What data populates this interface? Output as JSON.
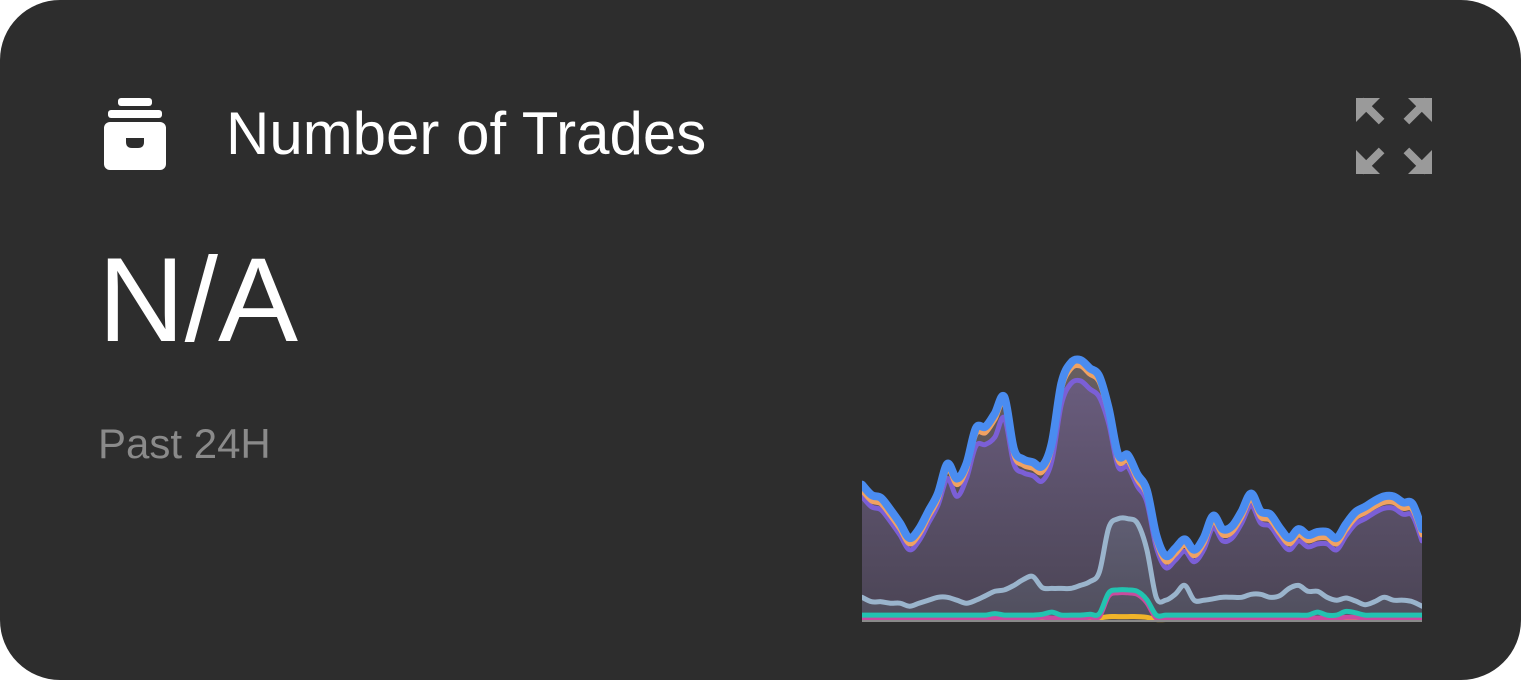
{
  "card": {
    "icon": "archive-box-icon",
    "title": "Number of Trades",
    "value": "N/A",
    "period": "Past 24H",
    "expand_icon": "expand-arrows-icon"
  },
  "colors": {
    "card_background": "#2d2d2d",
    "title_text": "#ffffff",
    "value_text": "#ffffff",
    "period_text": "#8a8a8a",
    "icon": "#ffffff",
    "expand_icon": "#9a9a9a"
  },
  "chart_data": {
    "type": "area",
    "stacked": true,
    "axes_visible": false,
    "grid": false,
    "legend": "none",
    "points_per_series": 60,
    "series": [
      {
        "color": "#f0b429",
        "values": [
          1,
          1,
          1,
          1,
          1,
          1,
          1,
          1,
          1,
          1,
          1,
          1,
          1,
          1,
          1,
          1,
          1,
          1,
          1,
          1.5,
          1,
          1,
          1,
          1,
          1.5,
          2,
          3,
          3,
          3,
          3,
          2.5,
          1,
          1,
          1,
          1,
          1,
          1,
          1,
          1,
          1,
          1,
          1,
          1,
          1,
          1,
          1,
          1,
          1,
          1,
          1,
          1,
          1.5,
          1.5,
          1,
          1,
          1,
          1,
          1,
          1,
          1
        ]
      },
      {
        "color": "#c84b9e",
        "values": [
          1,
          1,
          1,
          1,
          1,
          1,
          1,
          1,
          1,
          1,
          1,
          1,
          1,
          1,
          1,
          1,
          1,
          1,
          1,
          1,
          1,
          1,
          1,
          1,
          1,
          1,
          14,
          16,
          16,
          15,
          10,
          1,
          1,
          1,
          1,
          1,
          1,
          1,
          1,
          1,
          1,
          1,
          1,
          1,
          1,
          1,
          1,
          1,
          1,
          1,
          1,
          1,
          1,
          1,
          1,
          1,
          1,
          1,
          1,
          1
        ]
      },
      {
        "color": "#22c3b0",
        "values": [
          2,
          2,
          2,
          2,
          2,
          2,
          2,
          2,
          2,
          2,
          2,
          2,
          2,
          2,
          3,
          2,
          2,
          2,
          2,
          2,
          4,
          2,
          2,
          2,
          2,
          2,
          2,
          2,
          2,
          2,
          2,
          2,
          2,
          2,
          2,
          2,
          2,
          2,
          2,
          2,
          2,
          2,
          2,
          2,
          2,
          2,
          2,
          2,
          4,
          2,
          2,
          4,
          3,
          2,
          2,
          2,
          2,
          2,
          2,
          2
        ]
      },
      {
        "color": "#9ab4cc",
        "values": [
          12,
          9,
          9,
          8,
          8,
          6,
          8,
          10,
          12,
          12,
          10,
          8,
          10,
          13,
          15,
          17,
          20,
          24,
          26,
          18,
          16,
          18,
          18,
          20,
          22,
          28,
          44,
          48,
          48,
          46,
          34,
          12,
          10,
          14,
          20,
          10,
          10,
          11,
          12,
          12,
          12,
          14,
          14,
          12,
          13,
          18,
          20,
          16,
          14,
          12,
          10,
          9,
          8,
          7,
          9,
          12,
          10,
          10,
          9,
          6
        ]
      },
      {
        "color": "#7b5fd6",
        "values": [
          68,
          64,
          62,
          55,
          46,
          38,
          42,
          52,
          62,
          80,
          70,
          84,
          104,
          102,
          104,
          116,
          82,
          72,
          68,
          72,
          86,
          124,
          138,
          138,
          130,
          118,
          70,
          35,
          35,
          25,
          32,
          34,
          22,
          23,
          23,
          26,
          34,
          48,
          38,
          40,
          50,
          60,
          48,
          48,
          38,
          26,
          30,
          30,
          32,
          36,
          34,
          42,
          52,
          58,
          60,
          60,
          62,
          58,
          58,
          44
        ]
      },
      {
        "color": "#f0a262",
        "values": [
          4,
          4,
          4,
          4,
          4,
          4,
          4,
          4,
          4,
          6,
          8,
          6,
          8,
          8,
          12,
          10,
          6,
          5,
          5,
          6,
          8,
          10,
          10,
          10,
          10,
          10,
          6,
          4,
          4,
          4,
          4,
          4,
          4,
          4,
          4,
          4,
          4,
          4,
          4,
          4,
          4,
          4,
          4,
          4,
          4,
          4,
          4,
          4,
          4,
          4,
          4,
          4,
          4,
          4,
          4,
          4,
          4,
          4,
          4,
          4
        ]
      },
      {
        "color": "#4a8cf0",
        "values": [
          4,
          4,
          4,
          4,
          4,
          4,
          4,
          4,
          4,
          4,
          4,
          4,
          4,
          4,
          4,
          4,
          4,
          4,
          4,
          4,
          4,
          4,
          4,
          4,
          4,
          4,
          4,
          4,
          4,
          4,
          4,
          4,
          4,
          4,
          4,
          4,
          4,
          4,
          4,
          4,
          4,
          4,
          4,
          4,
          4,
          4,
          4,
          4,
          4,
          4,
          4,
          4,
          4,
          4,
          4,
          4,
          4,
          4,
          4,
          4
        ]
      }
    ]
  }
}
